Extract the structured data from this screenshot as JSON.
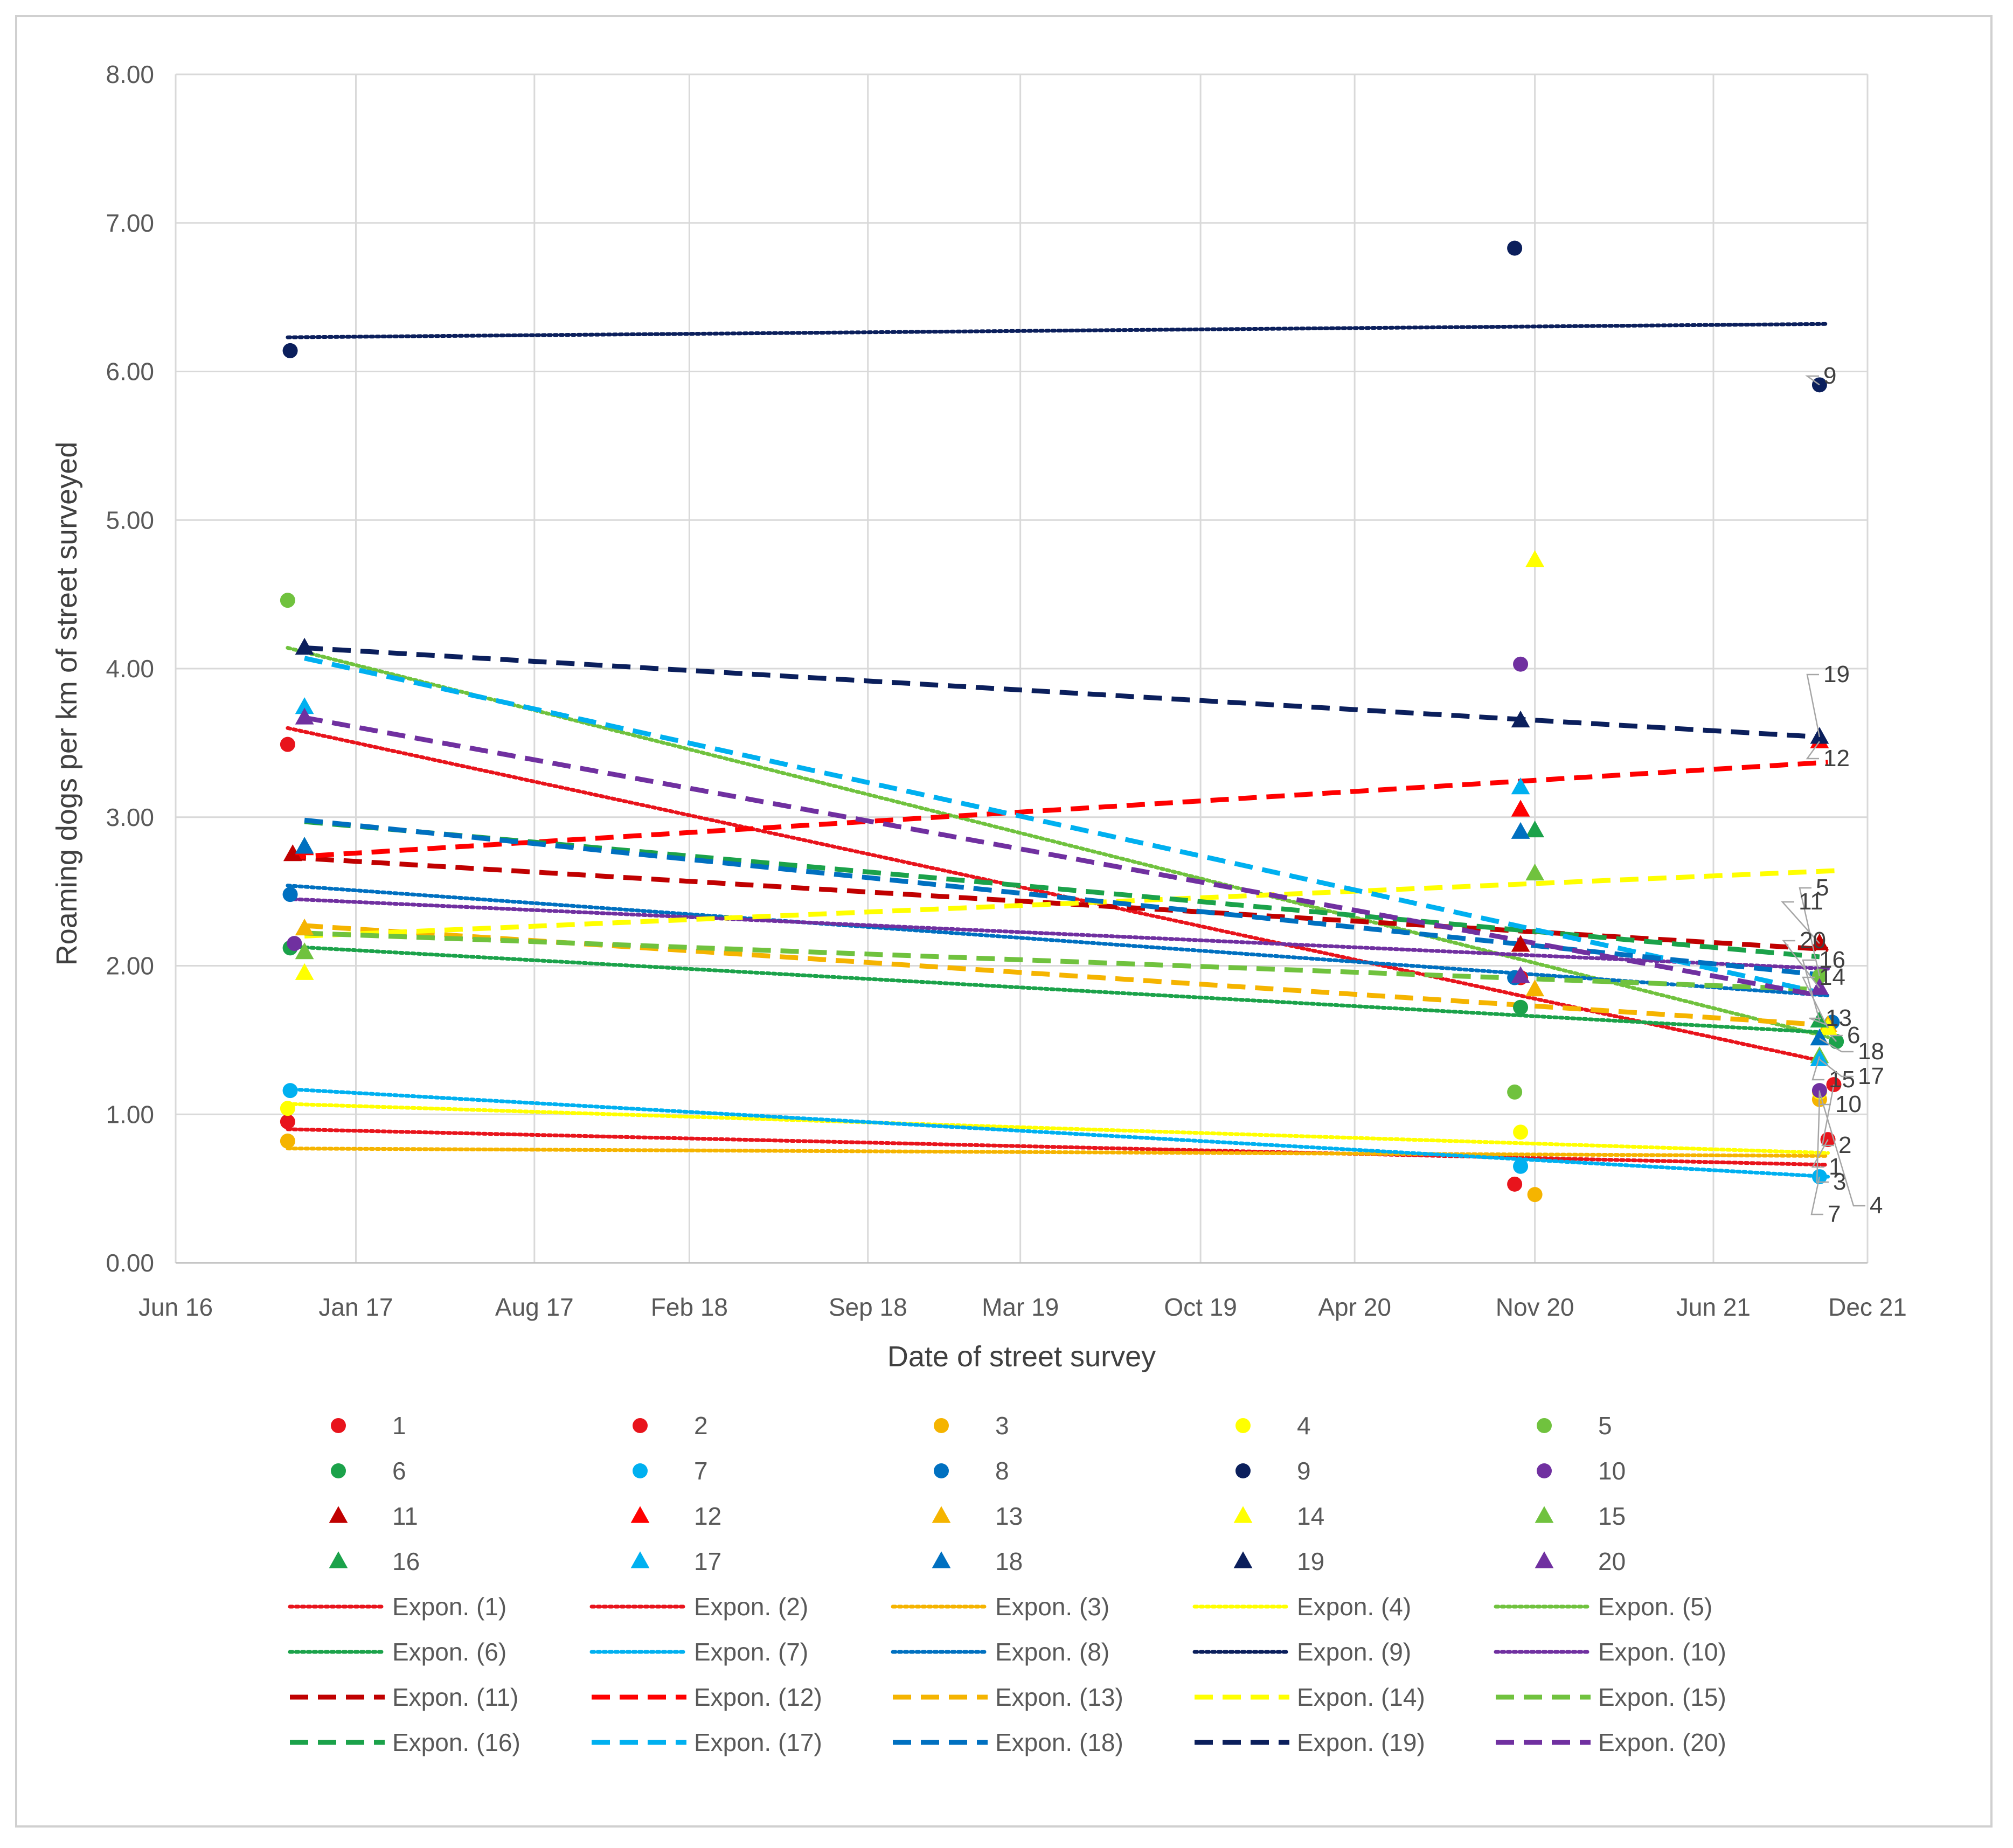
{
  "chart_data": {
    "type": "scatter",
    "xlabel": "Date of street survey",
    "ylabel": "Roaming dogs per km of street surveyed",
    "x_axis": {
      "type": "date",
      "range": [
        "2016-06-01",
        "2021-12-01"
      ],
      "ticks": [
        "2016-06-01",
        "2017-01-01",
        "2017-08-01",
        "2018-02-01",
        "2018-09-01",
        "2019-03-01",
        "2019-10-01",
        "2020-04-01",
        "2020-11-01",
        "2021-06-01",
        "2021-12-01"
      ],
      "tick_labels": [
        "Jun 16",
        "Jan 17",
        "Aug 17",
        "Feb 18",
        "Sep 18",
        "Mar 19",
        "Oct 19",
        "Apr 20",
        "Nov 20",
        "Jun 21",
        "Dec 21"
      ]
    },
    "y_axis": {
      "range": [
        0,
        8
      ],
      "ticks": [
        0,
        1,
        2,
        3,
        4,
        5,
        6,
        7,
        8
      ],
      "tick_labels": [
        "0.00",
        "1.00",
        "2.00",
        "3.00",
        "4.00",
        "5.00",
        "6.00",
        "7.00",
        "8.00"
      ]
    },
    "grid": true,
    "legend_position": "bottom",
    "series": [
      {
        "name": "1",
        "marker": "circle",
        "color": "#e8141c",
        "trend_style": "dotted",
        "trend_name": "Expon. (1)",
        "label": "1",
        "points": [
          [
            "2016-10-12",
            0.95
          ],
          [
            "2020-10-08",
            0.53
          ],
          [
            "2021-10-15",
            0.83
          ]
        ],
        "trend": [
          [
            "2016-10-12",
            0.9
          ],
          [
            "2021-10-15",
            0.66
          ]
        ]
      },
      {
        "name": "2",
        "marker": "circle",
        "color": "#e8141c",
        "trend_style": "dotted",
        "trend_name": "Expon. (2)",
        "label": "2",
        "points": [
          [
            "2016-10-12",
            3.49
          ],
          [
            "2020-10-15",
            1.92
          ],
          [
            "2021-10-22",
            1.2
          ]
        ],
        "trend": [
          [
            "2016-10-12",
            3.6
          ],
          [
            "2021-10-15",
            1.35
          ]
        ]
      },
      {
        "name": "3",
        "marker": "circle",
        "color": "#f5b400",
        "trend_style": "dotted",
        "trend_name": "Expon. (3)",
        "label": "3",
        "points": [
          [
            "2016-10-12",
            0.82
          ],
          [
            "2020-11-01",
            0.46
          ],
          [
            "2021-10-05",
            1.1
          ]
        ],
        "trend": [
          [
            "2016-10-12",
            0.77
          ],
          [
            "2021-10-15",
            0.72
          ]
        ]
      },
      {
        "name": "4",
        "marker": "circle",
        "color": "#ffff00",
        "trend_style": "dotted",
        "trend_name": "Expon. (4)",
        "label": "4",
        "points": [
          [
            "2016-10-12",
            1.04
          ],
          [
            "2020-10-15",
            0.88
          ],
          [
            "2021-10-05",
            1.15
          ]
        ],
        "trend": [
          [
            "2016-10-12",
            1.07
          ],
          [
            "2021-10-15",
            0.74
          ]
        ]
      },
      {
        "name": "5",
        "marker": "circle",
        "color": "#70c23e",
        "trend_style": "dotted",
        "trend_name": "Expon. (5)",
        "label": "5",
        "points": [
          [
            "2016-10-12",
            4.46
          ],
          [
            "2020-10-08",
            1.15
          ],
          [
            "2021-10-05",
            1.93
          ]
        ],
        "trend": [
          [
            "2016-10-12",
            4.14
          ],
          [
            "2021-10-15",
            1.52
          ]
        ]
      },
      {
        "name": "6",
        "marker": "circle",
        "color": "#1ba24a",
        "trend_style": "dotted",
        "trend_name": "Expon. (6)",
        "label": "6",
        "points": [
          [
            "2016-10-15",
            2.12
          ],
          [
            "2020-10-15",
            1.72
          ],
          [
            "2021-10-25",
            1.49
          ]
        ],
        "trend": [
          [
            "2016-10-12",
            2.13
          ],
          [
            "2021-10-15",
            1.55
          ]
        ]
      },
      {
        "name": "7",
        "marker": "circle",
        "color": "#00b0f0",
        "trend_style": "dotted",
        "trend_name": "Expon. (7)",
        "label": "7",
        "points": [
          [
            "2016-10-15",
            1.16
          ],
          [
            "2020-10-15",
            0.65
          ],
          [
            "2021-10-05",
            0.58
          ]
        ],
        "trend": [
          [
            "2016-10-12",
            1.17
          ],
          [
            "2021-10-15",
            0.58
          ]
        ]
      },
      {
        "name": "8",
        "marker": "circle",
        "color": "#0070c0",
        "trend_style": "dotted",
        "trend_name": "Expon. (8)",
        "label": "8",
        "points": [
          [
            "2016-10-15",
            2.48
          ],
          [
            "2020-10-08",
            1.92
          ],
          [
            "2021-10-20",
            1.62
          ]
        ],
        "trend": [
          [
            "2016-10-12",
            2.54
          ],
          [
            "2021-10-15",
            1.8
          ]
        ]
      },
      {
        "name": "9",
        "marker": "circle",
        "color": "#0b1f5c",
        "trend_style": "dotted",
        "trend_name": "Expon. (9)",
        "label": "9",
        "points": [
          [
            "2016-10-15",
            6.14
          ],
          [
            "2020-10-08",
            6.83
          ],
          [
            "2021-10-05",
            5.91
          ]
        ],
        "trend": [
          [
            "2016-10-12",
            6.23
          ],
          [
            "2021-10-15",
            6.32
          ]
        ]
      },
      {
        "name": "10",
        "marker": "circle",
        "color": "#7030a0",
        "trend_style": "dotted",
        "trend_name": "Expon. (10)",
        "label": "10",
        "points": [
          [
            "2016-10-20",
            2.15
          ],
          [
            "2020-10-15",
            4.03
          ],
          [
            "2021-10-05",
            1.16
          ]
        ],
        "trend": [
          [
            "2016-10-12",
            2.45
          ],
          [
            "2021-10-15",
            1.98
          ]
        ]
      },
      {
        "name": "11",
        "marker": "triangle",
        "color": "#c00000",
        "trend_style": "dashed",
        "trend_name": "Expon. (11)",
        "label": "11",
        "points": [
          [
            "2016-10-18",
            2.75
          ],
          [
            "2020-10-15",
            2.14
          ],
          [
            "2021-10-05",
            2.15
          ]
        ],
        "trend": [
          [
            "2016-10-12",
            2.73
          ],
          [
            "2021-10-15",
            2.11
          ]
        ]
      },
      {
        "name": "12",
        "marker": "triangle",
        "color": "#ff0000",
        "trend_style": "dashed",
        "trend_name": "Expon. (12)",
        "label": "12",
        "points": [
          [
            "2016-11-01",
            2.79
          ],
          [
            "2020-10-15",
            3.05
          ],
          [
            "2021-10-05",
            3.51
          ]
        ],
        "trend": [
          [
            "2016-10-12",
            2.73
          ],
          [
            "2021-10-15",
            3.37
          ]
        ]
      },
      {
        "name": "13",
        "marker": "triangle",
        "color": "#f5b400",
        "trend_style": "dashed",
        "trend_name": "Expon. (13)",
        "label": "13",
        "points": [
          [
            "2016-11-01",
            2.25
          ],
          [
            "2020-11-01",
            1.84
          ],
          [
            "2021-10-15",
            1.6
          ]
        ],
        "trend": [
          [
            "2016-11-01",
            2.27
          ],
          [
            "2021-10-15",
            1.6
          ]
        ]
      },
      {
        "name": "14",
        "marker": "triangle",
        "color": "#ffff00",
        "trend_style": "dashed",
        "trend_name": "Expon. (14)",
        "label": "14",
        "points": [
          [
            "2016-11-01",
            1.95
          ],
          [
            "2020-11-01",
            4.73
          ],
          [
            "2021-10-15",
            1.58
          ]
        ],
        "trend": [
          [
            "2016-11-01",
            2.2
          ],
          [
            "2021-10-25",
            2.64
          ]
        ]
      },
      {
        "name": "15",
        "marker": "triangle",
        "color": "#70c23e",
        "trend_style": "dashed",
        "trend_name": "Expon. (15)",
        "label": "15",
        "points": [
          [
            "2016-11-01",
            2.09
          ],
          [
            "2020-11-01",
            2.62
          ],
          [
            "2021-10-05",
            1.39
          ]
        ],
        "trend": [
          [
            "2016-11-01",
            2.22
          ],
          [
            "2021-10-05",
            1.84
          ]
        ]
      },
      {
        "name": "16",
        "marker": "triangle",
        "color": "#1ba24a",
        "trend_style": "dashed",
        "trend_name": "Expon. (16)",
        "label": "16",
        "points": [
          [
            "2016-11-01",
            2.8
          ],
          [
            "2020-11-01",
            2.91
          ],
          [
            "2021-10-05",
            1.63
          ]
        ],
        "trend": [
          [
            "2016-11-01",
            2.97
          ],
          [
            "2021-10-05",
            2.06
          ]
        ]
      },
      {
        "name": "17",
        "marker": "triangle",
        "color": "#00b0f0",
        "trend_style": "dashed",
        "trend_name": "Expon. (17)",
        "label": "17",
        "points": [
          [
            "2016-11-01",
            3.74
          ],
          [
            "2020-10-15",
            3.2
          ],
          [
            "2021-10-05",
            1.37
          ]
        ],
        "trend": [
          [
            "2016-11-01",
            4.07
          ],
          [
            "2021-10-05",
            1.82
          ]
        ]
      },
      {
        "name": "18",
        "marker": "triangle",
        "color": "#0070c0",
        "trend_style": "dashed",
        "trend_name": "Expon. (18)",
        "label": "18",
        "points": [
          [
            "2016-11-01",
            2.8
          ],
          [
            "2020-10-15",
            2.9
          ],
          [
            "2021-10-05",
            1.51
          ]
        ],
        "trend": [
          [
            "2016-11-01",
            2.98
          ],
          [
            "2021-10-05",
            1.94
          ]
        ]
      },
      {
        "name": "19",
        "marker": "triangle",
        "color": "#0b1f5c",
        "trend_style": "dashed",
        "trend_name": "Expon. (19)",
        "label": "19",
        "points": [
          [
            "2016-11-01",
            4.14
          ],
          [
            "2020-10-15",
            3.65
          ],
          [
            "2021-10-05",
            3.54
          ]
        ],
        "trend": [
          [
            "2016-11-01",
            4.14
          ],
          [
            "2021-10-05",
            3.54
          ]
        ]
      },
      {
        "name": "20",
        "marker": "triangle",
        "color": "#7030a0",
        "trend_style": "dashed",
        "trend_name": "Expon. (20)",
        "label": "20",
        "points": [
          [
            "2016-11-01",
            3.67
          ],
          [
            "2020-10-15",
            1.93
          ],
          [
            "2021-10-05",
            1.85
          ]
        ],
        "trend": [
          [
            "2016-11-01",
            3.67
          ],
          [
            "2021-10-05",
            1.8
          ]
        ]
      }
    ]
  }
}
